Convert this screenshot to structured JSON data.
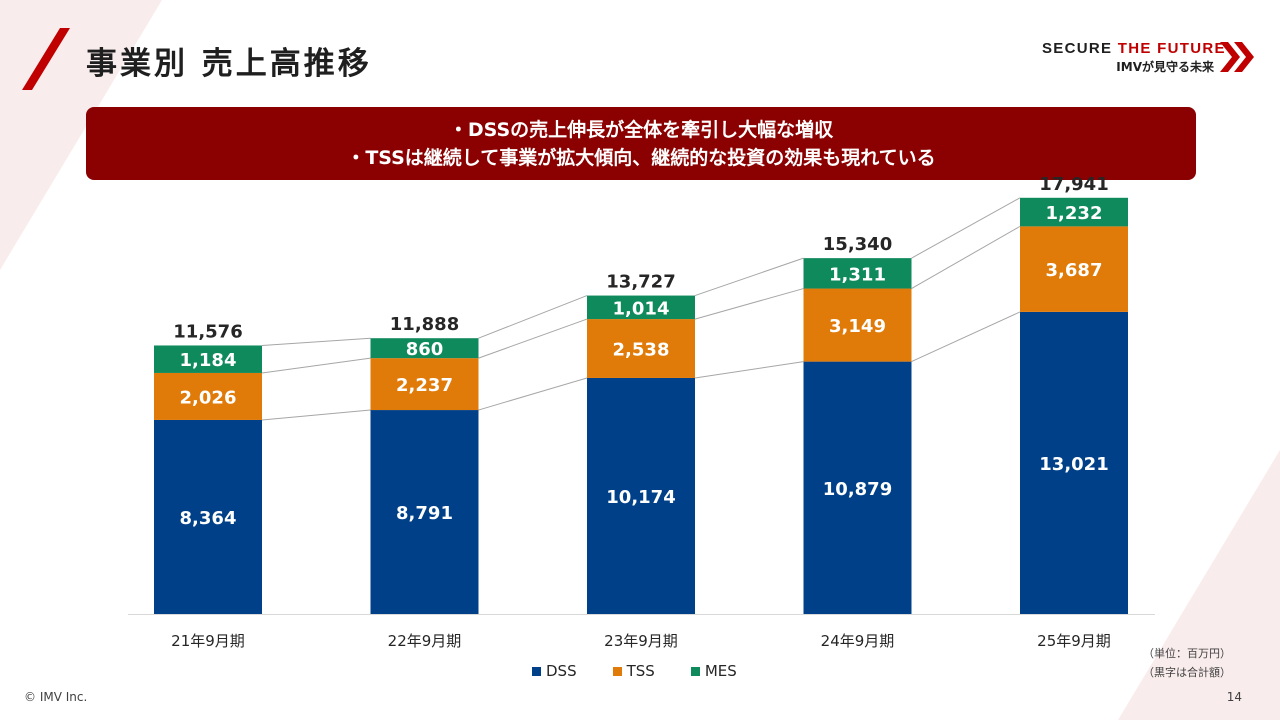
{
  "page": {
    "title": "事業別 売上高推移",
    "page_number": "14",
    "copyright": "© IMV Inc."
  },
  "brand": {
    "slogan_main": "SECURE",
    "slogan_accent": "THE FUTURE",
    "slogan_sub": "IMVが見守る未来",
    "accent_color": "#c00000"
  },
  "banner": {
    "lines": [
      "・DSSの売上伸長が全体を牽引し大幅な増収",
      "・TSSは継続して事業が拡大傾向、継続的な投資の効果も現れている"
    ],
    "color": "#8b0000"
  },
  "chart_data": {
    "type": "bar",
    "stacked": true,
    "categories": [
      "21年9月期",
      "22年9月期",
      "23年9月期",
      "24年9月期",
      "25年9月期"
    ],
    "series": [
      {
        "name": "DSS",
        "color": "#004088",
        "values": [
          8364,
          8791,
          10174,
          10879,
          13021
        ]
      },
      {
        "name": "TSS",
        "color": "#e07b0a",
        "values": [
          2026,
          2237,
          2538,
          3149,
          3687
        ]
      },
      {
        "name": "MES",
        "color": "#0f8a5c",
        "values": [
          1184,
          860,
          1014,
          1311,
          1232
        ]
      }
    ],
    "totals": [
      11576,
      11888,
      13727,
      15340,
      17941
    ],
    "ylim": [
      0,
      20000
    ],
    "grid": false,
    "legend": "bottom-center",
    "connector_lines": true,
    "unit_note": [
      "（単位：百万円）",
      "（黒字は合計額）"
    ]
  }
}
